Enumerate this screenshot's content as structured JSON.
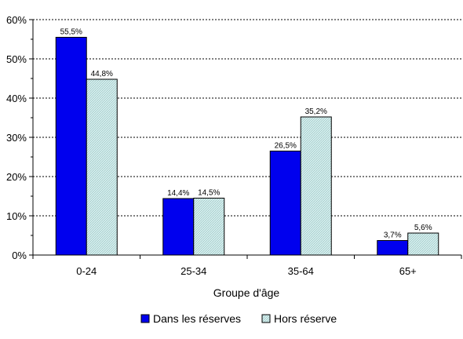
{
  "chart_data": {
    "type": "bar",
    "categories": [
      "0-24",
      "25-34",
      "35-64",
      "65+"
    ],
    "series": [
      {
        "name": "Dans les réserves",
        "values": [
          55.5,
          14.4,
          26.5,
          3.7
        ],
        "labels": [
          "55,5%",
          "14,4%",
          "26,5%",
          "3,7%"
        ],
        "color": "#0000ee"
      },
      {
        "name": "Hors réserve",
        "values": [
          44.8,
          14.5,
          35.2,
          5.6
        ],
        "labels": [
          "44,8%",
          "14,5%",
          "35,2%",
          "5,6%"
        ],
        "color": "#c8eaea"
      }
    ],
    "title": "",
    "xlabel": "Groupe d'âge",
    "ylabel": "",
    "ylim": [
      0,
      60
    ],
    "yticks": [
      0,
      10,
      20,
      30,
      40,
      50,
      60
    ],
    "ytick_labels": [
      "0%",
      "10%",
      "20%",
      "30%",
      "40%",
      "50%",
      "60%"
    ],
    "grid": true,
    "legend_position": "bottom"
  }
}
